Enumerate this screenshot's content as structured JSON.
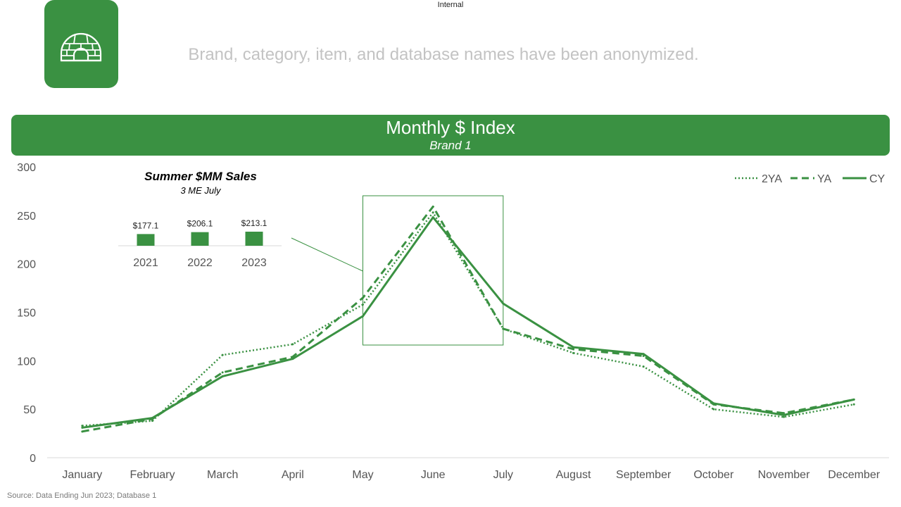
{
  "header": {
    "classification": "Internal",
    "disclaimer": "Brand, category, item, and database names have been anonymized.",
    "logo_icon": "igloo-icon"
  },
  "banner": {
    "title": "Monthly $ Index",
    "subtitle": "Brand 1"
  },
  "colors": {
    "brand_green": "#3a9142",
    "axis_text": "#555555",
    "disclaimer_text": "#c3c3c3"
  },
  "chart_data": [
    {
      "type": "line",
      "x": [
        "January",
        "February",
        "March",
        "April",
        "May",
        "June",
        "July",
        "August",
        "September",
        "October",
        "November",
        "December"
      ],
      "ylim": [
        0,
        300
      ],
      "yticks": [
        0,
        50,
        100,
        150,
        200,
        250,
        300
      ],
      "grid": false,
      "legend_position": "top-right",
      "series": [
        {
          "name": "2YA",
          "style": "dotted",
          "values": [
            33,
            38,
            106,
            117,
            158,
            253,
            133,
            108,
            94,
            50,
            42,
            55
          ]
        },
        {
          "name": "YA",
          "style": "dashed",
          "values": [
            27,
            40,
            88,
            104,
            165,
            259,
            133,
            112,
            105,
            55,
            46,
            60
          ]
        },
        {
          "name": "CY",
          "style": "solid",
          "values": [
            31,
            41,
            84,
            102,
            146,
            248,
            159,
            114,
            107,
            56,
            44,
            60
          ]
        }
      ],
      "highlight": {
        "from": "May",
        "to": "July"
      }
    },
    {
      "type": "bar",
      "title": "Summer $MM Sales",
      "subtitle": "3 ME July",
      "categories": [
        "2021",
        "2022",
        "2023"
      ],
      "values": [
        177.1,
        206.1,
        213.1
      ],
      "labels": [
        "$177.1",
        "$206.1",
        "$213.1"
      ]
    }
  ],
  "footer": {
    "source": "Source:  Data Ending Jun 2023;  Database 1"
  }
}
